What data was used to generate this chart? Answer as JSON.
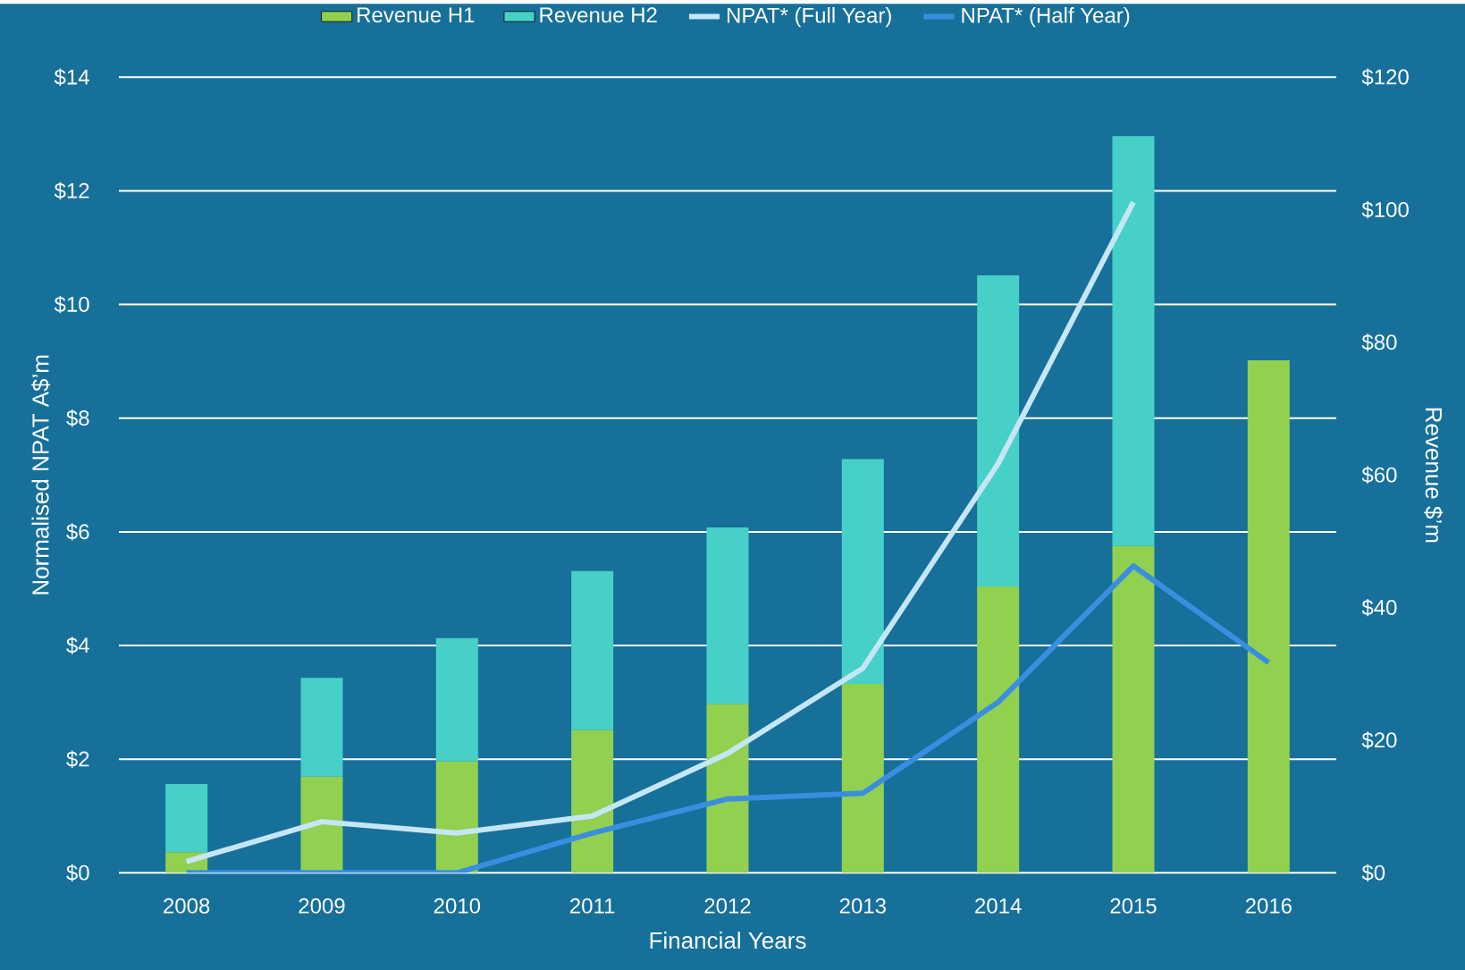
{
  "chart_data": {
    "type": "bar",
    "stacked": true,
    "xlabel": "Financial Years",
    "ylabel": "Normalised NPAT A$’m",
    "y2label": "Revenue $’m",
    "categories": [
      "2008",
      "2009",
      "2010",
      "2011",
      "2012",
      "2013",
      "2014",
      "2015",
      "2016"
    ],
    "series": [
      {
        "name": "Revenue H1",
        "color": "#92d050",
        "axis": "y2",
        "values": [
          3.1,
          14.5,
          16.8,
          21.5,
          25.5,
          28.5,
          43.2,
          49.3,
          77.3
        ]
      },
      {
        "name": "Revenue H2",
        "color": "#46d0c8",
        "axis": "y2",
        "values": [
          10.3,
          14.9,
          18.6,
          24.0,
          26.6,
          33.9,
          46.9,
          61.8,
          null
        ]
      },
      {
        "name": "NPAT* (Full Year)",
        "type": "line",
        "color": "#c5e6f5",
        "values": [
          0.2,
          0.9,
          0.7,
          1.0,
          2.1,
          3.6,
          7.2,
          11.8,
          null
        ]
      },
      {
        "name": "NPAT* (Half Year)",
        "type": "line",
        "color": "#3a8ee0",
        "values": [
          0,
          0,
          0,
          0.7,
          1.3,
          1.4,
          3.0,
          5.4,
          3.7
        ]
      }
    ],
    "ylim": [
      0,
      14
    ],
    "yticks": [
      {
        "value": 0,
        "label": "$0"
      },
      {
        "value": 2,
        "label": "$2"
      },
      {
        "value": 4,
        "label": "$4"
      },
      {
        "value": 6,
        "label": "$6"
      },
      {
        "value": 8,
        "label": "$8"
      },
      {
        "value": 10,
        "label": "$10"
      },
      {
        "value": 12,
        "label": "$12"
      },
      {
        "value": 14,
        "label": "$14"
      }
    ],
    "y2lim": [
      0,
      120
    ],
    "y2ticks": [
      {
        "value": 0,
        "label": "$0"
      },
      {
        "value": 20,
        "label": "$20"
      },
      {
        "value": 40,
        "label": "$40"
      },
      {
        "value": 60,
        "label": "$60"
      },
      {
        "value": 80,
        "label": "$80"
      },
      {
        "value": 100,
        "label": "$100"
      },
      {
        "value": 120,
        "label": "$120"
      }
    ],
    "grid": "y",
    "legend": "top",
    "marker": "none",
    "line_style": "solid"
  }
}
